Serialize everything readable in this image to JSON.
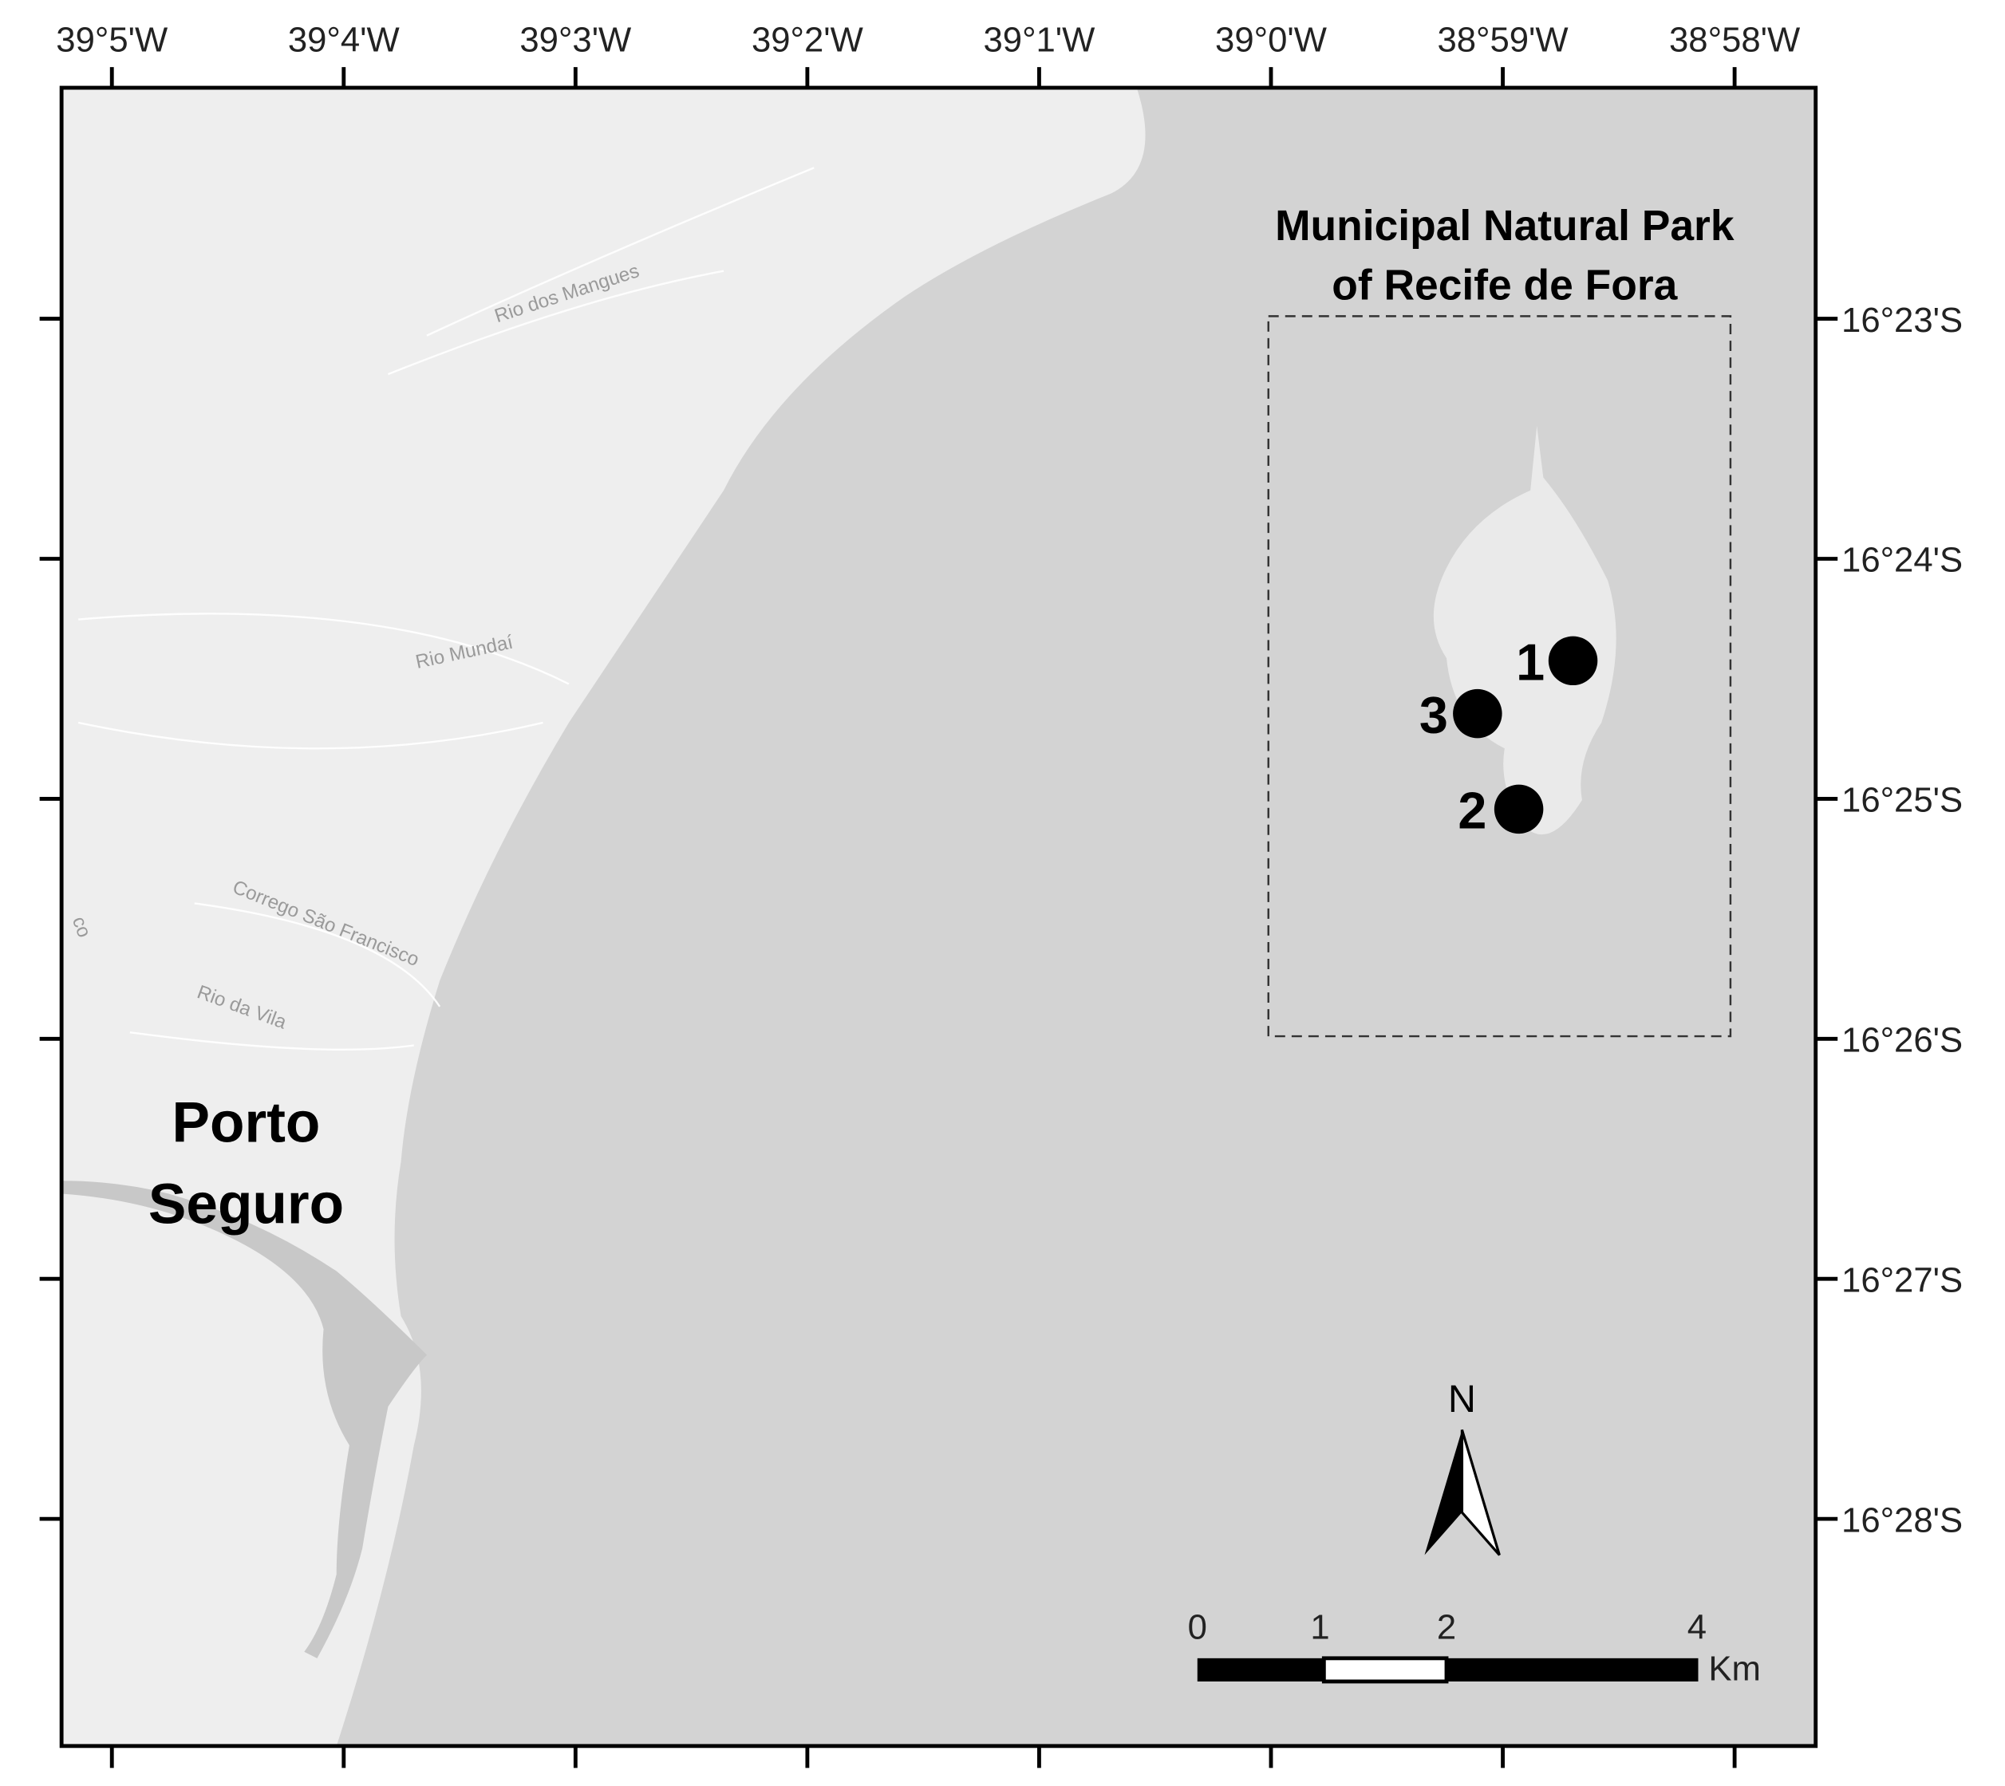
{
  "map": {
    "longitude_labels": [
      "39°5'W",
      "39°4'W",
      "39°3'W",
      "39°2'W",
      "39°1'W",
      "39°0'W",
      "38°59'W",
      "38°58'W"
    ],
    "latitude_labels": [
      "16°23'S",
      "16°24'S",
      "16°25'S",
      "16°26'S",
      "16°27'S",
      "16°28'S"
    ],
    "park_title": [
      "Municipal Natural Park",
      "of Recife de Fora"
    ],
    "city_label": [
      "Porto",
      "Seguro"
    ],
    "river_labels": [
      "Rio dos Mangues",
      "Rio Mundaí",
      "Corrego São Francisco",
      "Rio da Vila",
      "co"
    ],
    "sites": [
      "1",
      "2",
      "3"
    ],
    "north": "N",
    "scale_labels": [
      "0",
      "1",
      "2",
      "4"
    ],
    "scale_unit": "Km"
  }
}
